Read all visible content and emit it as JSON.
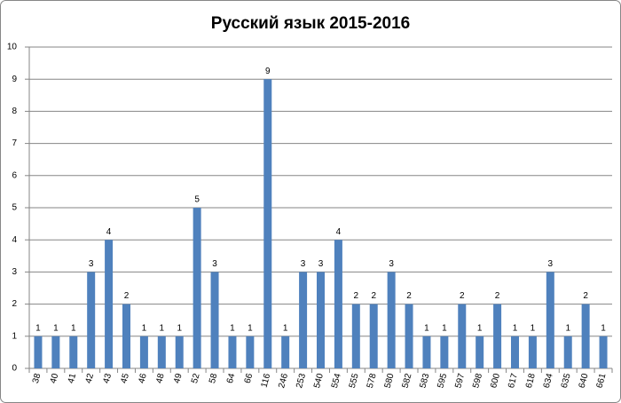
{
  "chart_data": {
    "type": "bar",
    "title": "Русский язык 2015-2016",
    "categories": [
      "38",
      "40",
      "41",
      "42",
      "43",
      "45",
      "46",
      "48",
      "49",
      "52",
      "58",
      "64",
      "66",
      "116",
      "246",
      "253",
      "540",
      "554",
      "555",
      "578",
      "580",
      "582",
      "583",
      "595",
      "597",
      "598",
      "600",
      "617",
      "618",
      "634",
      "635",
      "640",
      "661"
    ],
    "values": [
      1,
      1,
      1,
      3,
      4,
      2,
      1,
      1,
      1,
      5,
      3,
      1,
      1,
      9,
      1,
      3,
      3,
      4,
      2,
      2,
      3,
      2,
      1,
      1,
      2,
      1,
      2,
      1,
      1,
      3,
      1,
      2,
      1
    ],
    "color": "#4f81bd",
    "ylim": [
      0,
      10
    ],
    "yticks": [
      0,
      1,
      2,
      3,
      4,
      5,
      6,
      7,
      8,
      9,
      10
    ],
    "grid": true,
    "data_labels": true
  }
}
